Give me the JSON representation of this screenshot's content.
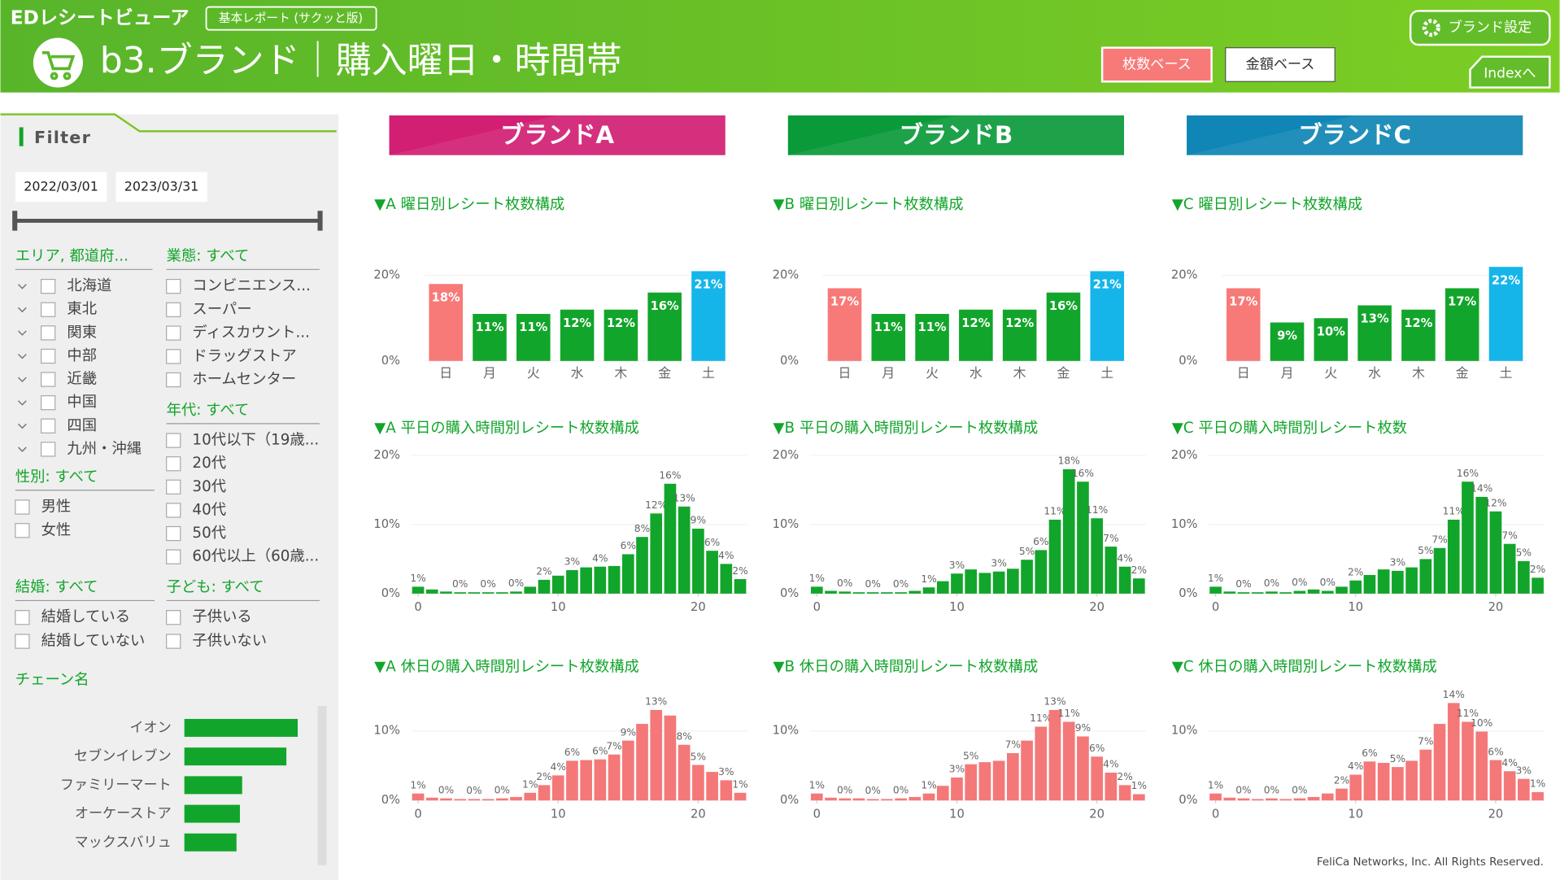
{
  "header": {
    "app_name": "EDレシートビューア",
    "report_badge": "基本レポート (サクッと版)",
    "title": "b3.ブランド｜購入曜日・時間帯",
    "brand_settings": "ブランド設定",
    "toggle_count": "枚数ベース",
    "toggle_amount": "金額ベース",
    "index_button": "Indexへ"
  },
  "filter": {
    "title": "Filter",
    "date_from": "2022/03/01",
    "date_to": "2023/03/31",
    "area": {
      "label": "エリア, 都道府...",
      "items": [
        "北海道",
        "東北",
        "関東",
        "中部",
        "近畿",
        "中国",
        "四国",
        "九州・沖縄"
      ]
    },
    "gender": {
      "label": "性別: すべて",
      "items": [
        "男性",
        "女性"
      ]
    },
    "marital": {
      "label": "結婚: すべて",
      "items": [
        "結婚している",
        "結婚していない"
      ]
    },
    "business": {
      "label": "業態: すべて",
      "items": [
        "コンビニエンス...",
        "スーパー",
        "ディスカウント...",
        "ドラッグストア",
        "ホームセンター"
      ]
    },
    "age": {
      "label": "年代: すべて",
      "items": [
        "10代以下（19歳...",
        "20代",
        "30代",
        "40代",
        "50代",
        "60代以上（60歳..."
      ]
    },
    "children": {
      "label": "子ども: すべて",
      "items": [
        "子供いる",
        "子供いない"
      ]
    },
    "chain": {
      "type": "bar",
      "label": "チェーン名",
      "categories": [
        "イオン",
        "セブンイレブン",
        "ファミリーマート",
        "オーケーストア",
        "マックスバリュ"
      ],
      "values": [
        100,
        90,
        51,
        49,
        46
      ],
      "xlim": [
        0,
        100
      ],
      "color": "#12a52b"
    }
  },
  "brands": [
    {
      "name": "ブランドA",
      "color": "#d21f73",
      "charts": [
        {
          "type": "bar",
          "title": "▼A 曜日別レシート枚数構成",
          "categories": [
            "日",
            "月",
            "火",
            "水",
            "木",
            "金",
            "土"
          ],
          "values": [
            18,
            11,
            11,
            12,
            12,
            16,
            21
          ],
          "value_labels": [
            "18%",
            "11%",
            "11%",
            "12%",
            "12%",
            "16%",
            "21%"
          ],
          "colors": [
            "#f77a78",
            "#12a52b",
            "#12a52b",
            "#12a52b",
            "#12a52b",
            "#12a52b",
            "#15b5ea"
          ],
          "ylim": [
            0,
            22
          ],
          "yticks": [
            {
              "value": 0,
              "label": "0%"
            },
            {
              "value": 20,
              "label": "20%"
            }
          ]
        },
        {
          "type": "bar",
          "title": "▼A 平日の購入時間別レシート枚数構成",
          "x": [
            0,
            1,
            2,
            3,
            4,
            5,
            6,
            7,
            8,
            9,
            10,
            11,
            12,
            13,
            14,
            15,
            16,
            17,
            18,
            19,
            20,
            21,
            22,
            23
          ],
          "values": [
            1.0,
            0.6,
            0.3,
            0.2,
            0.2,
            0.2,
            0.2,
            0.3,
            1.0,
            2.0,
            2.6,
            3.4,
            3.8,
            3.9,
            4.0,
            5.7,
            8.2,
            11.6,
            15.9,
            12.6,
            9.4,
            6.2,
            4.3,
            2.1
          ],
          "value_labels": [
            "1%",
            null,
            null,
            "0%",
            null,
            "0%",
            null,
            "0%",
            null,
            "2%",
            null,
            "3%",
            null,
            "4%",
            null,
            "6%",
            "8%",
            "12%",
            "16%",
            "13%",
            "9%",
            "6%",
            "4%",
            "2%"
          ],
          "color": "#12a52b",
          "xlim": [
            -0.5,
            23.5
          ],
          "xticks": [
            0,
            10,
            20
          ],
          "ylim": [
            0,
            20
          ],
          "yticks": [
            {
              "value": 0,
              "label": "0%"
            },
            {
              "value": 10,
              "label": "10%"
            },
            {
              "value": 20,
              "label": "20%"
            }
          ]
        },
        {
          "type": "bar",
          "title": "▼A 休日の購入時間別レシート枚数構成",
          "x": [
            0,
            1,
            2,
            3,
            4,
            5,
            6,
            7,
            8,
            9,
            10,
            11,
            12,
            13,
            14,
            15,
            16,
            17,
            18,
            19,
            20,
            21,
            22,
            23
          ],
          "values": [
            1.0,
            0.4,
            0.3,
            0.2,
            0.2,
            0.2,
            0.3,
            0.5,
            1.1,
            2.2,
            3.6,
            5.7,
            5.8,
            5.9,
            6.6,
            8.6,
            11.0,
            13.0,
            12.2,
            8.0,
            5.1,
            4.1,
            2.9,
            1.1
          ],
          "value_labels": [
            "1%",
            null,
            "0%",
            null,
            "0%",
            null,
            "0%",
            null,
            "1%",
            "2%",
            "4%",
            "6%",
            null,
            "6%",
            "7%",
            "9%",
            null,
            "13%",
            null,
            "8%",
            "5%",
            null,
            "3%",
            "1%"
          ],
          "color": "#f47878",
          "xlim": [
            -0.5,
            23.5
          ],
          "xticks": [
            0,
            10,
            20
          ],
          "ylim": [
            0,
            15
          ],
          "yticks": [
            {
              "value": 0,
              "label": "0%"
            },
            {
              "value": 10,
              "label": "10%"
            }
          ]
        }
      ]
    },
    {
      "name": "ブランドB",
      "color": "#0a9a3a",
      "charts": [
        {
          "type": "bar",
          "title": "▼B 曜日別レシート枚数構成",
          "categories": [
            "日",
            "月",
            "火",
            "水",
            "木",
            "金",
            "土"
          ],
          "values": [
            17,
            11,
            11,
            12,
            12,
            16,
            21
          ],
          "value_labels": [
            "17%",
            "11%",
            "11%",
            "12%",
            "12%",
            "16%",
            "21%"
          ],
          "colors": [
            "#f77a78",
            "#12a52b",
            "#12a52b",
            "#12a52b",
            "#12a52b",
            "#12a52b",
            "#15b5ea"
          ],
          "ylim": [
            0,
            22
          ],
          "yticks": [
            {
              "value": 0,
              "label": "0%"
            },
            {
              "value": 20,
              "label": "20%"
            }
          ]
        },
        {
          "type": "bar",
          "title": "▼B 平日の購入時間別レシート枚数構成",
          "x": [
            0,
            1,
            2,
            3,
            4,
            5,
            6,
            7,
            8,
            9,
            10,
            11,
            12,
            13,
            14,
            15,
            16,
            17,
            18,
            19,
            20,
            21,
            22,
            23
          ],
          "values": [
            1.0,
            0.4,
            0.3,
            0.2,
            0.2,
            0.2,
            0.2,
            0.4,
            0.9,
            1.8,
            2.9,
            3.5,
            3.0,
            3.2,
            3.6,
            4.9,
            6.3,
            10.7,
            18.0,
            16.2,
            10.9,
            6.8,
            3.9,
            2.2
          ],
          "value_labels": [
            "1%",
            null,
            "0%",
            null,
            "0%",
            null,
            "0%",
            null,
            "1%",
            null,
            "3%",
            null,
            null,
            "3%",
            null,
            "5%",
            "6%",
            "11%",
            "18%",
            "16%",
            "11%",
            "7%",
            "4%",
            "2%"
          ],
          "color": "#12a52b",
          "xlim": [
            -0.5,
            23.5
          ],
          "xticks": [
            0,
            10,
            20
          ],
          "ylim": [
            0,
            20
          ],
          "yticks": [
            {
              "value": 0,
              "label": "0%"
            },
            {
              "value": 10,
              "label": "10%"
            },
            {
              "value": 20,
              "label": "20%"
            }
          ]
        },
        {
          "type": "bar",
          "title": "▼B 休日の購入時間別レシート枚数構成",
          "x": [
            0,
            1,
            2,
            3,
            4,
            5,
            6,
            7,
            8,
            9,
            10,
            11,
            12,
            13,
            14,
            15,
            16,
            17,
            18,
            19,
            20,
            21,
            22,
            23
          ],
          "values": [
            1.0,
            0.4,
            0.3,
            0.3,
            0.2,
            0.2,
            0.3,
            0.5,
            1.0,
            2.1,
            3.3,
            5.2,
            5.5,
            5.7,
            6.8,
            8.6,
            10.6,
            13.0,
            11.3,
            9.2,
            6.3,
            4.0,
            2.2,
            0.9
          ],
          "value_labels": [
            "1%",
            null,
            "0%",
            null,
            "0%",
            null,
            "0%",
            null,
            "1%",
            null,
            "3%",
            "5%",
            null,
            null,
            "7%",
            null,
            "11%",
            "13%",
            "11%",
            "9%",
            "6%",
            "4%",
            "2%",
            "1%"
          ],
          "color": "#f47878",
          "xlim": [
            -0.5,
            23.5
          ],
          "xticks": [
            0,
            10,
            20
          ],
          "ylim": [
            0,
            15
          ],
          "yticks": [
            {
              "value": 0,
              "label": "0%"
            },
            {
              "value": 10,
              "label": "10%"
            }
          ]
        }
      ]
    },
    {
      "name": "ブランドC",
      "color": "#0f86b5",
      "charts": [
        {
          "type": "bar",
          "title": "▼C 曜日別レシート枚数構成",
          "categories": [
            "日",
            "月",
            "火",
            "水",
            "木",
            "金",
            "土"
          ],
          "values": [
            17,
            9,
            10,
            13,
            12,
            17,
            22
          ],
          "value_labels": [
            "17%",
            "9%",
            "10%",
            "13%",
            "12%",
            "17%",
            "22%"
          ],
          "colors": [
            "#f77a78",
            "#12a52b",
            "#12a52b",
            "#12a52b",
            "#12a52b",
            "#12a52b",
            "#15b5ea"
          ],
          "ylim": [
            0,
            22
          ],
          "yticks": [
            {
              "value": 0,
              "label": "0%"
            },
            {
              "value": 20,
              "label": "20%"
            }
          ]
        },
        {
          "type": "bar",
          "title": "▼C 平日の購入時間別レシート枚数",
          "x": [
            0,
            1,
            2,
            3,
            4,
            5,
            6,
            7,
            8,
            9,
            10,
            11,
            12,
            13,
            14,
            15,
            16,
            17,
            18,
            19,
            20,
            21,
            22,
            23
          ],
          "values": [
            1.0,
            0.3,
            0.2,
            0.2,
            0.3,
            0.2,
            0.4,
            0.6,
            0.4,
            1.0,
            1.9,
            2.7,
            3.5,
            3.3,
            3.8,
            5.0,
            6.6,
            10.7,
            16.2,
            14.0,
            11.9,
            7.2,
            4.7,
            2.3
          ],
          "value_labels": [
            "1%",
            null,
            "0%",
            null,
            "0%",
            null,
            "0%",
            null,
            "0%",
            null,
            "2%",
            null,
            null,
            "3%",
            null,
            "5%",
            "7%",
            "11%",
            "16%",
            "14%",
            "12%",
            "7%",
            "5%",
            "2%"
          ],
          "color": "#12a52b",
          "xlim": [
            -0.5,
            23.5
          ],
          "xticks": [
            0,
            10,
            20
          ],
          "ylim": [
            0,
            20
          ],
          "yticks": [
            {
              "value": 0,
              "label": "0%"
            },
            {
              "value": 10,
              "label": "10%"
            },
            {
              "value": 20,
              "label": "20%"
            }
          ]
        },
        {
          "type": "bar",
          "title": "▼C 休日の購入時間別レシート枚数構成",
          "x": [
            0,
            1,
            2,
            3,
            4,
            5,
            6,
            7,
            8,
            9,
            10,
            11,
            12,
            13,
            14,
            15,
            16,
            17,
            18,
            19,
            20,
            21,
            22,
            23
          ],
          "values": [
            1.0,
            0.4,
            0.3,
            0.2,
            0.3,
            0.2,
            0.3,
            0.5,
            1.0,
            1.7,
            3.7,
            5.6,
            5.4,
            4.8,
            5.7,
            7.3,
            11.0,
            14.0,
            11.3,
            9.9,
            5.8,
            4.2,
            3.1,
            1.2
          ],
          "value_labels": [
            "1%",
            null,
            "0%",
            null,
            "0%",
            null,
            "0%",
            null,
            null,
            "2%",
            "4%",
            "6%",
            null,
            "5%",
            null,
            "7%",
            null,
            "14%",
            "11%",
            "10%",
            "6%",
            "4%",
            "3%",
            "1%"
          ],
          "color": "#f47878",
          "xlim": [
            -0.5,
            23.5
          ],
          "xticks": [
            0,
            10,
            20
          ],
          "ylim": [
            0,
            15
          ],
          "yticks": [
            {
              "value": 0,
              "label": "0%"
            },
            {
              "value": 10,
              "label": "10%"
            }
          ]
        }
      ]
    }
  ],
  "footer": "FeliCa Networks, Inc. All Rights Reserved."
}
